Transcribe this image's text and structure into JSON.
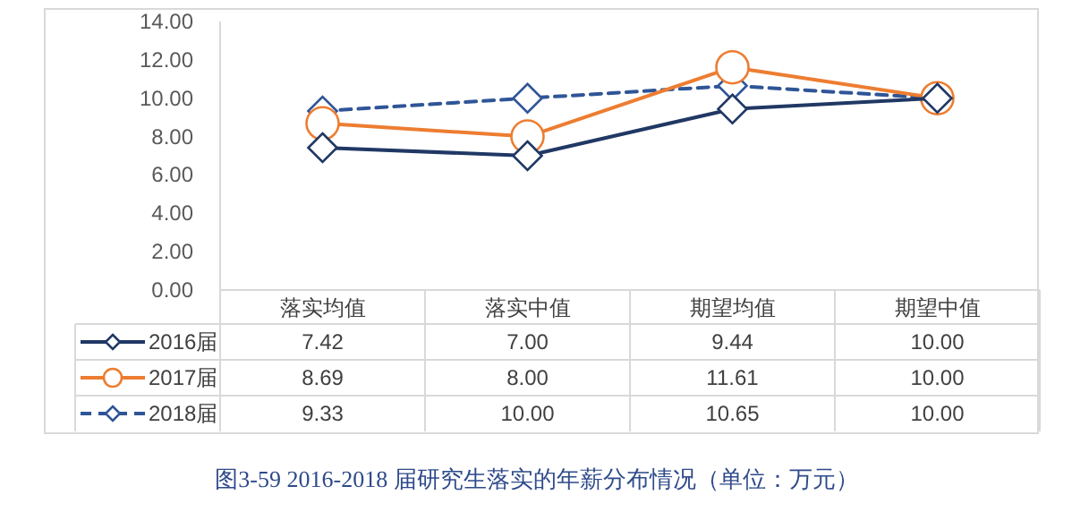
{
  "chart_data": {
    "type": "line",
    "title": "图3-59   2016-2018 届研究生落实的年薪分布情况（单位：万元）",
    "categories": [
      "落实均值",
      "落实中值",
      "期望均值",
      "期望中值"
    ],
    "ylim": [
      0,
      14
    ],
    "yticks": [
      {
        "value": 0,
        "label": "0.00"
      },
      {
        "value": 2,
        "label": "2.00"
      },
      {
        "value": 4,
        "label": "4.00"
      },
      {
        "value": 6,
        "label": "6.00"
      },
      {
        "value": 8,
        "label": "8.00"
      },
      {
        "value": 10,
        "label": "10.00"
      },
      {
        "value": 12,
        "label": "12.00"
      },
      {
        "value": 14,
        "label": "14.00"
      }
    ],
    "series": [
      {
        "name": "2016届",
        "color": "#203864",
        "marker": "diamond",
        "line_style": "solid",
        "values": [
          7.42,
          7.0,
          9.44,
          10.0
        ],
        "value_labels": [
          "7.42",
          "7.00",
          "9.44",
          "10.00"
        ]
      },
      {
        "name": "2017届",
        "color": "#ed7d31",
        "marker": "circle",
        "line_style": "solid",
        "values": [
          8.69,
          8.0,
          11.61,
          10.0
        ],
        "value_labels": [
          "8.69",
          "8.00",
          "11.61",
          "10.00"
        ]
      },
      {
        "name": "2018届",
        "color": "#2f5597",
        "marker": "diamond",
        "line_style": "dashed",
        "values": [
          9.33,
          10.0,
          10.65,
          10.0
        ],
        "value_labels": [
          "9.33",
          "10.00",
          "10.65",
          "10.00"
        ]
      }
    ],
    "legend": "bottom left",
    "grid": false
  }
}
